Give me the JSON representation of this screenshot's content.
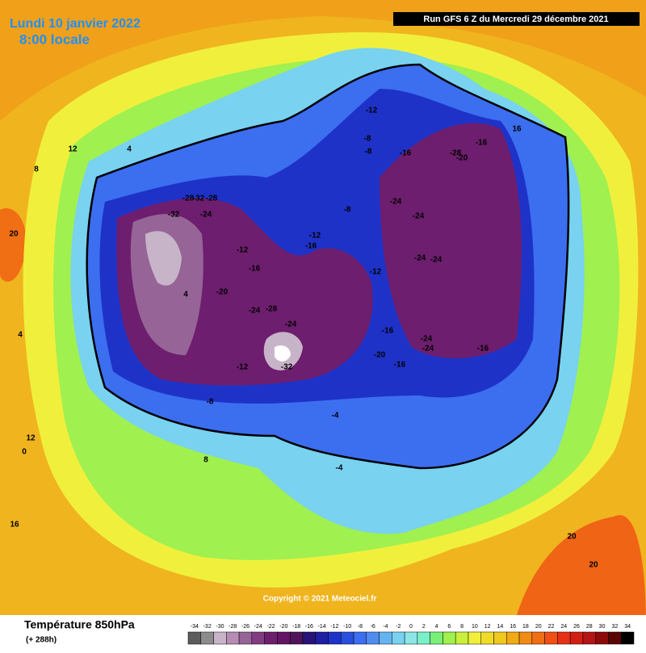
{
  "header": {
    "date": "Lundi 10 janvier 2022",
    "time": "8:00 locale",
    "run": "Run GFS 6 Z du Mercredi 29 décembre 2021"
  },
  "map": {
    "copyright": "Copyright © 2021 Meteociel.fr",
    "contour_labels": [
      -12,
      -8,
      -16,
      -16,
      -28,
      -20,
      -24,
      -24,
      -32,
      -24,
      -28,
      -32,
      -28,
      -24,
      -24,
      -20,
      -12,
      -16,
      -12,
      -24,
      -28,
      -24,
      -32,
      -12,
      -16,
      -20,
      -16,
      -24,
      -24,
      -16,
      -8,
      -8,
      -4,
      -12,
      -16,
      -8,
      -4,
      0,
      4,
      4,
      8,
      12,
      12,
      16,
      20,
      20,
      20,
      4,
      8,
      16
    ]
  },
  "legend": {
    "title": "Température 850hPa",
    "lead": "(+ 288h)",
    "ticks": [
      -34,
      -32,
      -30,
      -28,
      -26,
      -24,
      -22,
      -20,
      -18,
      -16,
      -14,
      -12,
      -10,
      -8,
      -6,
      -4,
      -2,
      0,
      2,
      4,
      6,
      8,
      10,
      12,
      14,
      16,
      18,
      20,
      22,
      24,
      26,
      28,
      30,
      32,
      34
    ],
    "colors": [
      "#5c5c5c",
      "#8c8c8c",
      "#c8b4c8",
      "#b48cb4",
      "#966496",
      "#823c82",
      "#6e1e6e",
      "#641464",
      "#50145a",
      "#281478",
      "#1e1ea0",
      "#1e32c8",
      "#2850dc",
      "#3c6ef0",
      "#508cf0",
      "#64b4f0",
      "#78d2f0",
      "#8ce6e6",
      "#78f0c8",
      "#78f078",
      "#a0f050",
      "#c8f03c",
      "#f0f03c",
      "#f0dc28",
      "#f0c81e",
      "#f0aa14",
      "#f08c14",
      "#f06e14",
      "#f05014",
      "#e63214",
      "#d21e14",
      "#b41414",
      "#8c0a0a",
      "#5a0505",
      "#000000"
    ]
  }
}
